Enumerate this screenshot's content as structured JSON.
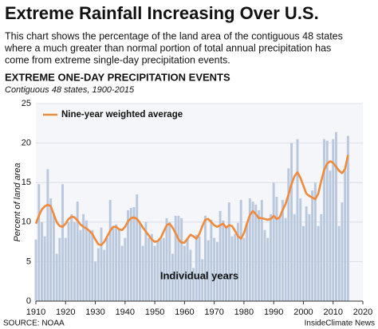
{
  "chart_data": {
    "type": "bar_line",
    "title": "Extreme Rainfall Increasing Over U.S.",
    "description": [
      "This chart shows the percentage of the land area of the contiguous 48 states",
      "where a much greater than normal portion of total annual precipitation has",
      "come from extreme single-day precipitation events."
    ],
    "chart_title": "EXTREME ONE-DAY PRECIPITATION EVENTS",
    "subtitle": "Contiguous 48 states, 1900-2015",
    "y_label": "Percent of land area",
    "annotation": "Individual years",
    "source": "SOURCE: NOAA",
    "credit": "InsideClimate News",
    "x": [
      1910,
      1911,
      1912,
      1913,
      1914,
      1915,
      1916,
      1917,
      1918,
      1919,
      1920,
      1921,
      1922,
      1923,
      1924,
      1925,
      1926,
      1927,
      1928,
      1929,
      1930,
      1931,
      1932,
      1933,
      1934,
      1935,
      1936,
      1937,
      1938,
      1939,
      1940,
      1941,
      1942,
      1943,
      1944,
      1945,
      1946,
      1947,
      1948,
      1949,
      1950,
      1951,
      1952,
      1953,
      1954,
      1955,
      1956,
      1957,
      1958,
      1959,
      1960,
      1961,
      1962,
      1963,
      1964,
      1965,
      1966,
      1967,
      1968,
      1969,
      1970,
      1971,
      1972,
      1973,
      1974,
      1975,
      1976,
      1977,
      1978,
      1979,
      1980,
      1981,
      1982,
      1983,
      1984,
      1985,
      1986,
      1987,
      1988,
      1989,
      1990,
      1991,
      1992,
      1993,
      1994,
      1995,
      1996,
      1997,
      1998,
      1999,
      2000,
      2001,
      2002,
      2003,
      2004,
      2005,
      2006,
      2007,
      2008,
      2009,
      2010,
      2011,
      2012,
      2013,
      2014,
      2015
    ],
    "series": [
      {
        "color": "#b9c8dd",
        "kind": "bar",
        "values": [
          7.8,
          14.8,
          10,
          8.2,
          16.7,
          13,
          11,
          6,
          8,
          14.8,
          8,
          10,
          11,
          10,
          12.6,
          9,
          11,
          10.2,
          9,
          9,
          5,
          6.7,
          9.3,
          6.5,
          8,
          12.8,
          9.5,
          9.7,
          9.2,
          7,
          8,
          11.5,
          11.8,
          11.9,
          13.5,
          10,
          7,
          10,
          8,
          8.5,
          7,
          7.5,
          7.8,
          8,
          10.5,
          10,
          6,
          10.8,
          10.8,
          10.5,
          7,
          8,
          6.5,
          4.2,
          8.4,
          8.2,
          5.3,
          10.8,
          7.7,
          10.3,
          8,
          7.5,
          11.4,
          10.2,
          9.5,
          12.5,
          8.2,
          8.5,
          9.9,
          12.8,
          8,
          9.8,
          13,
          12.6,
          12.2,
          11.5,
          12.8,
          9,
          8,
          11,
          15,
          13.2,
          10.5,
          12.8,
          10.5,
          16.8,
          20,
          11,
          20.5,
          13,
          9.5,
          12,
          11,
          14,
          15,
          9.5,
          11,
          20.5,
          20.3,
          16.5,
          20.5,
          21.4,
          9.5,
          12.5,
          16.5,
          20.9
        ]
      },
      {
        "name": "Nine-year weighted average",
        "color": "#f08a3c",
        "kind": "line",
        "values": [
          9.8,
          10.8,
          11.6,
          12.0,
          12.2,
          12.0,
          11.0,
          10.0,
          9.5,
          9.4,
          9.8,
          10.4,
          10.7,
          10.6,
          10.2,
          9.7,
          9.4,
          9.2,
          8.9,
          8.5,
          7.8,
          7.2,
          7.1,
          7.5,
          8.2,
          8.9,
          9.4,
          9.4,
          9.1,
          9.0,
          9.4,
          10.1,
          10.5,
          10.6,
          10.4,
          9.9,
          9.3,
          8.8,
          8.3,
          7.8,
          7.5,
          7.6,
          8.0,
          8.8,
          9.6,
          9.8,
          9.3,
          8.6,
          7.8,
          7.4,
          7.4,
          7.9,
          8.4,
          8.2,
          7.9,
          8.5,
          9.5,
          10.3,
          10.4,
          10.0,
          9.6,
          9.4,
          9.6,
          9.8,
          9.3,
          9.6,
          9.5,
          8.9,
          8.2,
          7.9,
          8.6,
          9.8,
          10.9,
          11.4,
          11.0,
          10.5,
          10.5,
          10.4,
          10.3,
          10.4,
          10.8,
          10.4,
          10.6,
          11.5,
          12.3,
          13.5,
          14.8,
          15.8,
          16.3,
          15.6,
          14.6,
          13.6,
          13.3,
          13.1,
          12.9,
          13.6,
          15.2,
          16.6,
          17.4,
          17.7,
          17.5,
          17.0,
          16.5,
          16.2,
          16.7,
          18.5
        ]
      }
    ],
    "xlim": [
      1910,
      2020
    ],
    "xticks": [
      1910,
      1920,
      1930,
      1940,
      1950,
      1960,
      1970,
      1980,
      1990,
      2000,
      2010,
      2020
    ],
    "ylim": [
      0,
      25
    ],
    "yticks": [
      0,
      5,
      10,
      15,
      20,
      25
    ],
    "grid": true
  }
}
